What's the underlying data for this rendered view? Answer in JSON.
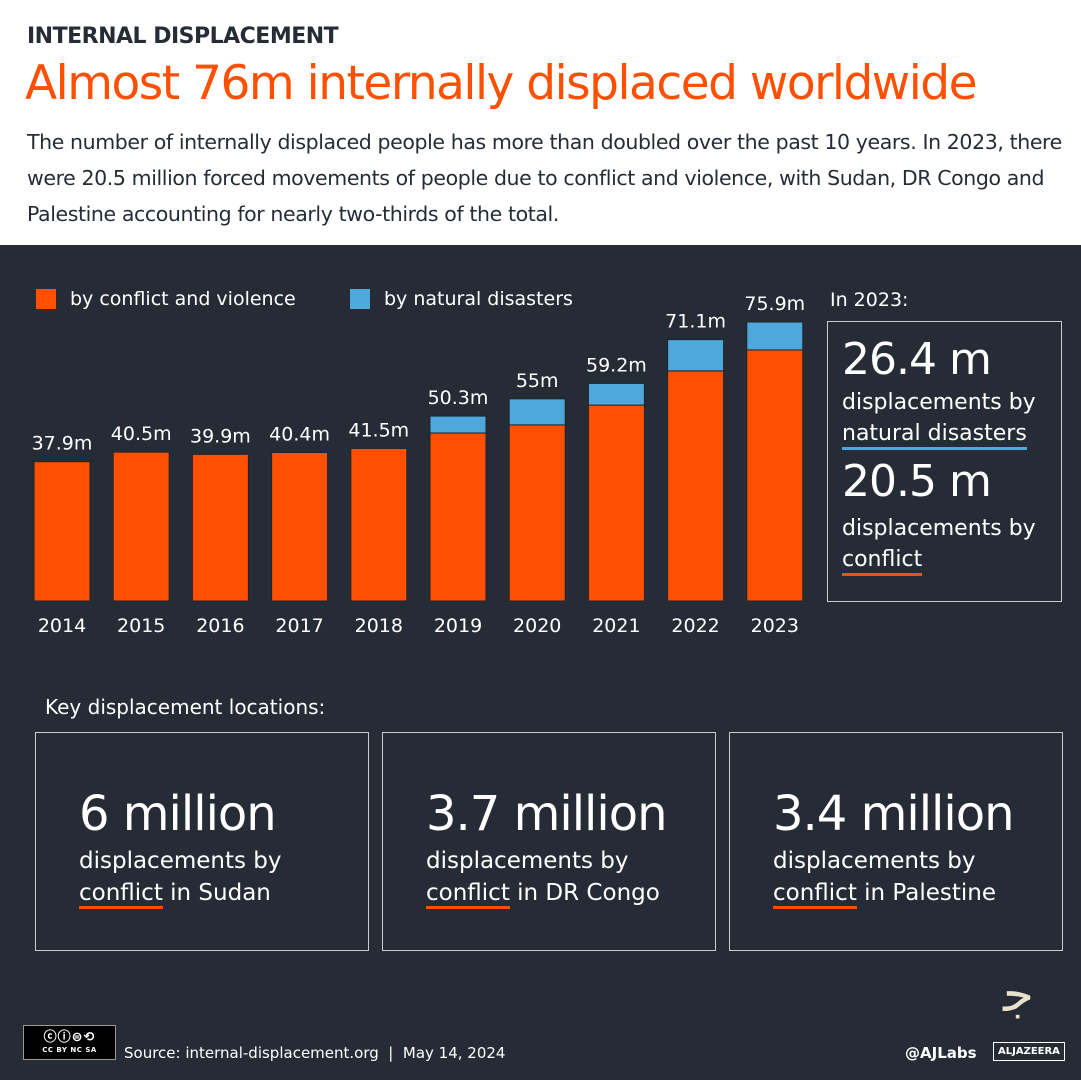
{
  "header": {
    "kicker": "INTERNAL DISPLACEMENT",
    "title": "Almost 76m internally displaced worldwide",
    "subtitle": "The number of internally displaced people has more than doubled over the past 10 years. In 2023, there were 20.5 million forced movements of people due to conflict and violence, with Sudan, DR Congo and Palestine accounting for nearly two-thirds of the total."
  },
  "chart_data": {
    "type": "bar",
    "stacked": true,
    "categories": [
      "2014",
      "2015",
      "2016",
      "2017",
      "2018",
      "2019",
      "2020",
      "2021",
      "2022",
      "2023"
    ],
    "series": [
      {
        "name": "by conflict and violence",
        "color": "#ff4f00",
        "values": [
          37.9,
          40.5,
          39.9,
          40.4,
          41.5,
          45.7,
          47.9,
          53.3,
          62.6,
          68.3
        ]
      },
      {
        "name": "by natural disasters",
        "color": "#4fa8dc",
        "values": [
          0,
          0,
          0,
          0,
          0,
          4.6,
          7.1,
          5.9,
          8.5,
          7.6
        ]
      }
    ],
    "data_labels": [
      "37.9m",
      "40.5m",
      "39.9m",
      "40.4m",
      "41.5m",
      "50.3m",
      "55m",
      "59.2m",
      "71.1m",
      "75.9m"
    ],
    "ylim": [
      0,
      80
    ],
    "grid": false,
    "legend": "top-left"
  },
  "panel2023": {
    "heading": "In 2023:",
    "disasters_value": "26.4 m",
    "disasters_pre": "displacements by",
    "disasters_ul": "natural disasters",
    "conflict_value": "20.5 m",
    "conflict_pre": "displacements by",
    "conflict_ul": "conflict"
  },
  "locations": {
    "heading": "Key displacement locations:",
    "items": [
      {
        "value": "6 million",
        "pre": "displacements by",
        "ul": "conflict",
        "post": " in Sudan"
      },
      {
        "value": "3.7 million",
        "pre": "displacements by",
        "ul": "conflict",
        "post": " in DR Congo"
      },
      {
        "value": "3.4 million",
        "pre": "displacements by",
        "ul": "conflict",
        "post": " in Palestine"
      }
    ]
  },
  "footer": {
    "license": "CC BY NC SA",
    "source": "Source: internal-displacement.org  |  May 14, 2024",
    "handle": "@AJLabs",
    "brand": "ALJAZEERA"
  }
}
